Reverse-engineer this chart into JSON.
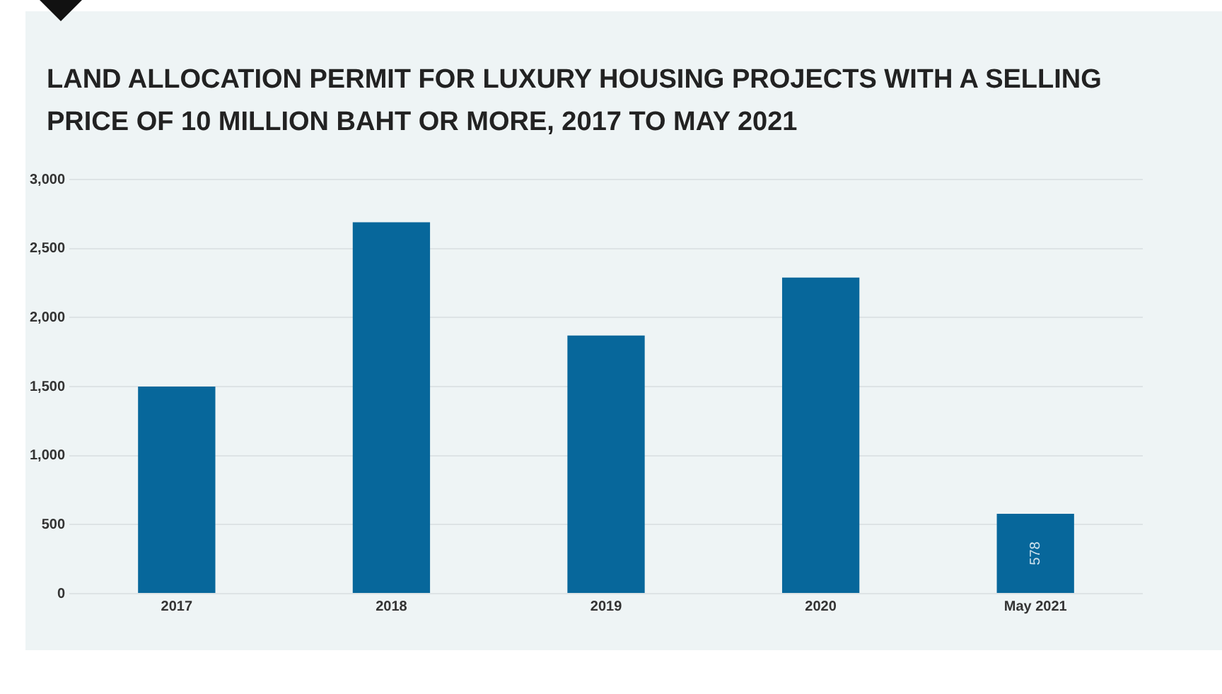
{
  "chart_data": {
    "type": "bar",
    "title": "LAND ALLOCATION PERMIT FOR LUXURY HOUSING PROJECTS WITH A SELLING PRICE OF 10 MILLION BAHT OR MORE, 2017 TO MAY 2021",
    "categories": [
      "2017",
      "2018",
      "2019",
      "2020",
      "May 2021"
    ],
    "values": [
      1500,
      2690,
      1870,
      2290,
      578
    ],
    "value_labels": [
      null,
      null,
      null,
      null,
      "578"
    ],
    "color": "#07679b",
    "ylim": [
      0,
      3000
    ],
    "yticks": [
      0,
      500,
      {
        "value": 1000,
        "label": "1,000"
      },
      {
        "value": 1500,
        "label": "1,500"
      },
      {
        "value": 2000,
        "label": "2,000"
      },
      {
        "value": 2500,
        "label": "2,500"
      },
      {
        "value": 3000,
        "label": "3,000"
      }
    ],
    "grid": "y"
  }
}
